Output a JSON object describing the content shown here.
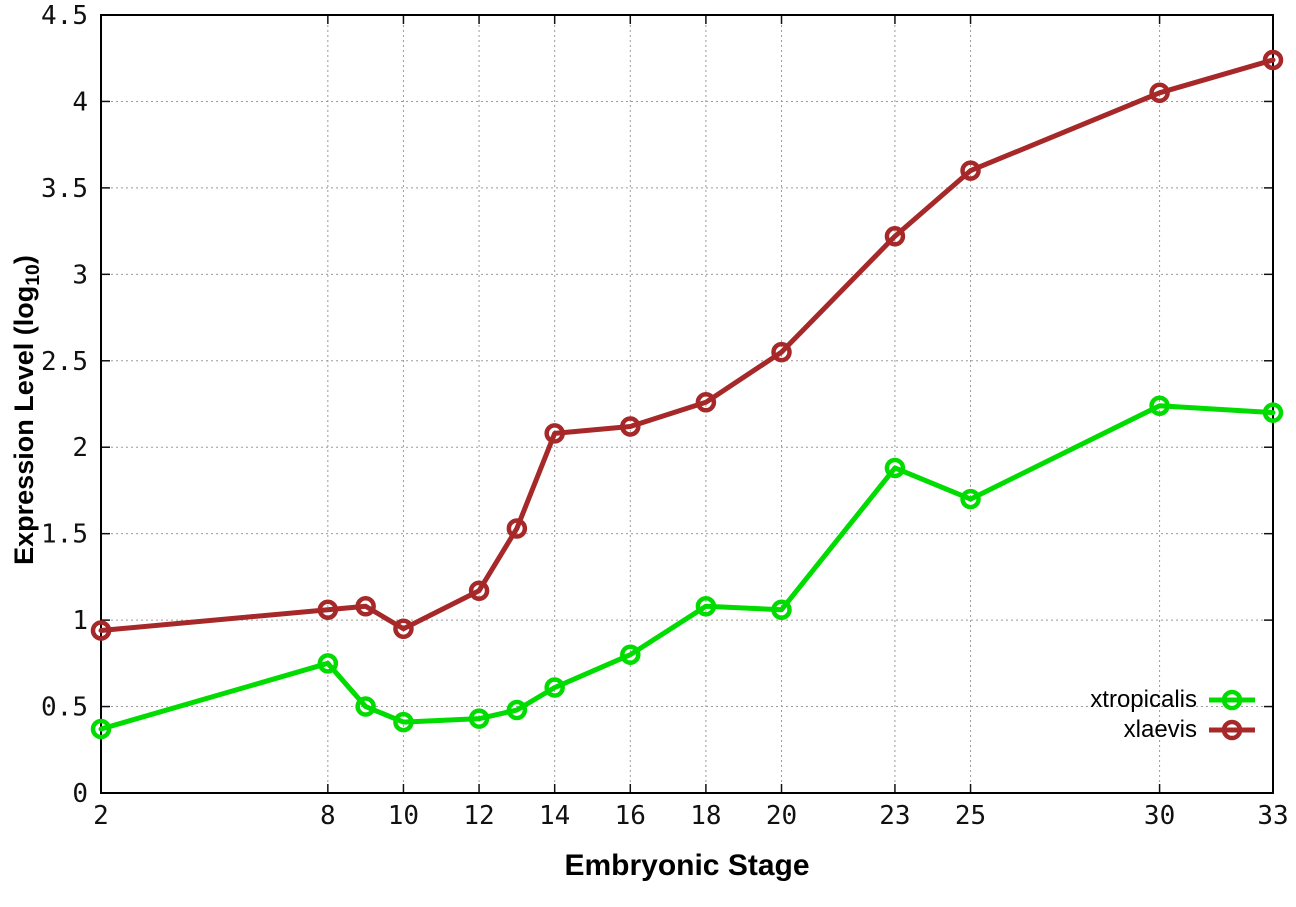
{
  "chart_data": {
    "type": "line",
    "title": "",
    "xlabel": "Embryonic Stage",
    "ylabel_main": "Expression Level (log",
    "ylabel_sub": "10",
    "ylabel_close": ")",
    "x": [
      2,
      8,
      9,
      10,
      12,
      13,
      14,
      16,
      18,
      20,
      23,
      25,
      30,
      33
    ],
    "series": [
      {
        "name": "xtropicalis",
        "color": "#00dc00",
        "values": [
          0.37,
          0.75,
          0.5,
          0.41,
          0.43,
          0.48,
          0.61,
          0.8,
          1.08,
          1.06,
          1.88,
          1.7,
          2.24,
          2.2
        ]
      },
      {
        "name": "xlaevis",
        "color": "#a62828",
        "values": [
          0.94,
          1.06,
          1.08,
          0.95,
          1.17,
          1.53,
          2.08,
          2.12,
          2.26,
          2.55,
          3.22,
          3.6,
          4.05,
          4.24
        ]
      }
    ],
    "xlim": [
      2,
      33
    ],
    "ylim": [
      0,
      4.5
    ],
    "xticks": [
      {
        "v": 2,
        "label": "2"
      },
      {
        "v": 8,
        "label": "8"
      },
      {
        "v": 10,
        "label": "10"
      },
      {
        "v": 12,
        "label": "12"
      },
      {
        "v": 14,
        "label": "14"
      },
      {
        "v": 16,
        "label": "16"
      },
      {
        "v": 18,
        "label": "18"
      },
      {
        "v": 20,
        "label": "20"
      },
      {
        "v": 23,
        "label": "23"
      },
      {
        "v": 25,
        "label": "25"
      },
      {
        "v": 30,
        "label": "30"
      },
      {
        "v": 33,
        "label": "33"
      }
    ],
    "yticks": [
      {
        "v": 0,
        "label": "0"
      },
      {
        "v": 0.5,
        "label": "0.5"
      },
      {
        "v": 1,
        "label": "1"
      },
      {
        "v": 1.5,
        "label": "1.5"
      },
      {
        "v": 2,
        "label": "2"
      },
      {
        "v": 2.5,
        "label": "2.5"
      },
      {
        "v": 3,
        "label": "3"
      },
      {
        "v": 3.5,
        "label": "3.5"
      },
      {
        "v": 4,
        "label": "4"
      },
      {
        "v": 4.5,
        "label": "4.5"
      }
    ],
    "grid": true,
    "legend_position": "bottom-right"
  }
}
